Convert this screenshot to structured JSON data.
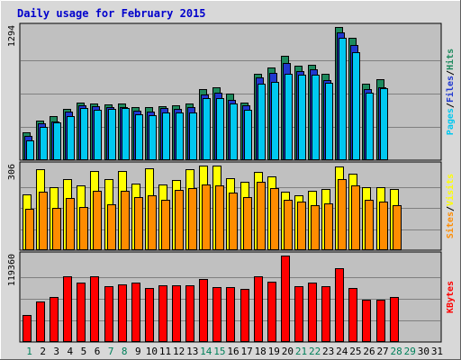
{
  "chart_data": {
    "type": "bar",
    "title": "Daily usage for February 2015",
    "days": [
      "1",
      "2",
      "3",
      "4",
      "5",
      "6",
      "7",
      "8",
      "9",
      "10",
      "11",
      "12",
      "13",
      "14",
      "15",
      "16",
      "17",
      "18",
      "19",
      "20",
      "21",
      "22",
      "23",
      "24",
      "25",
      "26",
      "27",
      "28",
      "29",
      "30",
      "31"
    ],
    "weekend_days": [
      "1",
      "7",
      "8",
      "14",
      "15",
      "21",
      "22",
      "28",
      "29"
    ],
    "panels": [
      {
        "id": "top",
        "max_label": "1294",
        "ylim": [
          0,
          1294
        ],
        "side_label": [
          "Pages",
          "/",
          "Files",
          "/",
          "Hits"
        ],
        "series": [
          {
            "name": "Hits",
            "color": "#1e8a5e",
            "values": [
              275,
              383,
              430,
              500,
              560,
              555,
              545,
              553,
              515,
              515,
              528,
              535,
              555,
              690,
              710,
              645,
              560,
              843,
              900,
              1010,
              915,
              925,
              840,
              1294,
              1193,
              740,
              790,
              0,
              0,
              0,
              0
            ]
          },
          {
            "name": "Files",
            "color": "#2038d0",
            "values": [
              240,
              355,
              380,
              470,
              535,
              525,
              520,
              520,
              480,
              470,
              503,
              500,
              520,
              640,
              655,
              590,
              535,
              807,
              849,
              946,
              865,
              880,
              782,
              1240,
              1120,
              690,
              710,
              0,
              0,
              0,
              0
            ]
          },
          {
            "name": "Pages",
            "color": "#00c8f0",
            "values": [
              193,
              320,
              368,
              430,
              506,
              490,
              496,
              505,
              445,
              440,
              462,
              464,
              460,
              600,
              600,
              550,
              490,
              740,
              758,
              836,
              830,
              830,
              750,
              1190,
              1045,
              660,
              702,
              0,
              0,
              0,
              0
            ]
          }
        ]
      },
      {
        "id": "middle",
        "max_label": "306",
        "ylim": [
          0,
          306
        ],
        "side_label": [
          "Sites",
          "/",
          "Visits"
        ],
        "series": [
          {
            "name": "Visits",
            "color": "#ffff00",
            "values": [
              203,
              293,
              228,
              256,
              236,
              288,
              257,
              288,
              242,
              296,
              237,
              254,
              294,
              306,
              306,
              261,
              248,
              284,
              267,
              213,
              200,
              214,
              221,
              302,
              277,
              228,
              227,
              221,
              0,
              0,
              0
            ]
          },
          {
            "name": "Sites",
            "color": "#ff8c00",
            "values": [
              150,
              212,
              154,
              188,
              157,
              216,
              167,
              215,
              191,
              197,
              182,
              219,
              226,
              239,
              234,
              207,
              193,
              247,
              226,
              181,
              175,
              163,
              169,
              258,
              234,
              182,
              175,
              163,
              0,
              0,
              0
            ]
          }
        ]
      },
      {
        "id": "bottom",
        "max_label": "119360",
        "ylim": [
          0,
          119360
        ],
        "side_label": [
          "KBytes"
        ],
        "series": [
          {
            "name": "KBytes",
            "color": "#ff0000",
            "values": [
              37700,
              56100,
              61700,
              90600,
              81800,
              90600,
              76700,
              79500,
              82500,
              74500,
              78100,
              78500,
              77900,
              86900,
              76200,
              75500,
              73400,
              90600,
              82800,
              119360,
              76700,
              82500,
              77200,
              102000,
              74100,
              58000,
              58400,
              62000,
              0,
              0,
              0
            ]
          }
        ]
      }
    ]
  }
}
